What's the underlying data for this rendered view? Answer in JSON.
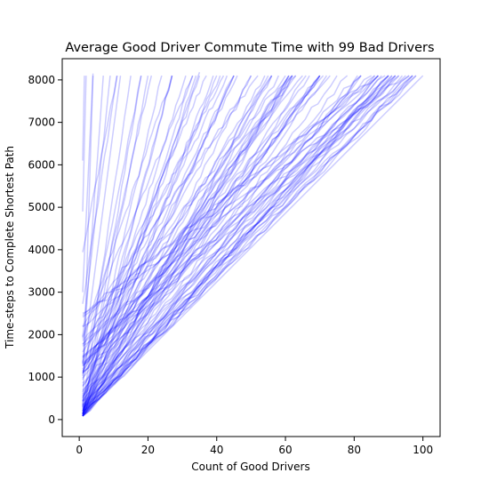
{
  "chart_data": {
    "type": "line",
    "title": "Average Good Driver Commute Time with 99 Bad Drivers",
    "xlabel": "Count of Good Drivers",
    "ylabel": "Time-steps to Complete Shortest Path",
    "xlim": [
      -4.95,
      105.0
    ],
    "ylim": [
      -400,
      8500
    ],
    "xticks": [
      0,
      20,
      40,
      60,
      80,
      100
    ],
    "yticks": [
      0,
      1000,
      2000,
      3000,
      4000,
      5000,
      6000,
      7000,
      8000
    ],
    "grid": false,
    "legend": "none",
    "line_color": "#0000ff",
    "line_alpha": 0.2,
    "series_count": 100,
    "y_end": 8100,
    "series": [
      {
        "x": [
          1,
          2,
          3,
          4,
          5,
          6,
          7,
          8,
          9,
          10,
          11,
          12,
          13,
          14,
          15,
          16,
          17,
          18,
          19,
          20,
          21,
          22,
          23,
          24,
          25,
          26,
          27,
          28,
          29,
          30,
          31,
          32,
          33,
          34,
          35,
          36,
          37,
          38,
          39,
          40,
          41,
          42,
          43,
          44,
          45,
          46,
          47,
          48,
          49,
          50,
          51,
          52,
          53,
          54,
          55,
          56,
          57,
          58,
          59,
          60,
          61,
          62,
          63,
          64,
          65,
          66,
          67,
          68,
          69,
          70,
          71,
          72,
          73,
          74,
          75,
          76,
          77,
          78,
          79,
          80,
          81,
          82,
          83,
          84,
          85,
          86,
          87,
          88,
          89,
          90,
          91,
          92,
          93,
          94,
          95,
          96,
          97,
          98,
          99,
          100
        ],
        "y": [
          81,
          162,
          243,
          324,
          405,
          486,
          567,
          648,
          729,
          810,
          891,
          972,
          1053,
          1134,
          1215,
          1296,
          1377,
          1458,
          1539,
          1620,
          1701,
          1782,
          1863,
          1944,
          2025,
          2106,
          2187,
          2268,
          2349,
          2430,
          2511,
          2592,
          2673,
          2754,
          2835,
          2916,
          2997,
          3078,
          3159,
          3240,
          3321,
          3402,
          3483,
          3564,
          3645,
          3726,
          3807,
          3888,
          3969,
          4050,
          4131,
          4212,
          4293,
          4374,
          4455,
          4536,
          4617,
          4698,
          4779,
          4860,
          4941,
          5022,
          5103,
          5184,
          5265,
          5346,
          5427,
          5508,
          5589,
          5670,
          5751,
          5832,
          5913,
          5994,
          6075,
          6156,
          6237,
          6318,
          6399,
          6480,
          6561,
          6642,
          6723,
          6804,
          6885,
          6966,
          7047,
          7128,
          7209,
          7290,
          7371,
          7452,
          7533,
          7614,
          7695,
          7776,
          7857,
          7938,
          8019,
          8100
        ]
      },
      {
        "x": [
          1,
          45
        ],
        "y": [
          300,
          8100
        ]
      },
      {
        "x": [
          1,
          35
        ],
        "y": [
          500,
          8180
        ]
      },
      {
        "x": [
          1,
          12
        ],
        "y": [
          1300,
          8100
        ]
      },
      {
        "x": [
          1,
          1.5
        ],
        "y": [
          6100,
          8100
        ]
      },
      {
        "x": [
          1,
          2
        ],
        "y": [
          4900,
          8100
        ]
      },
      {
        "x": [
          1,
          4
        ],
        "y": [
          3000,
          8150
        ]
      }
    ]
  }
}
